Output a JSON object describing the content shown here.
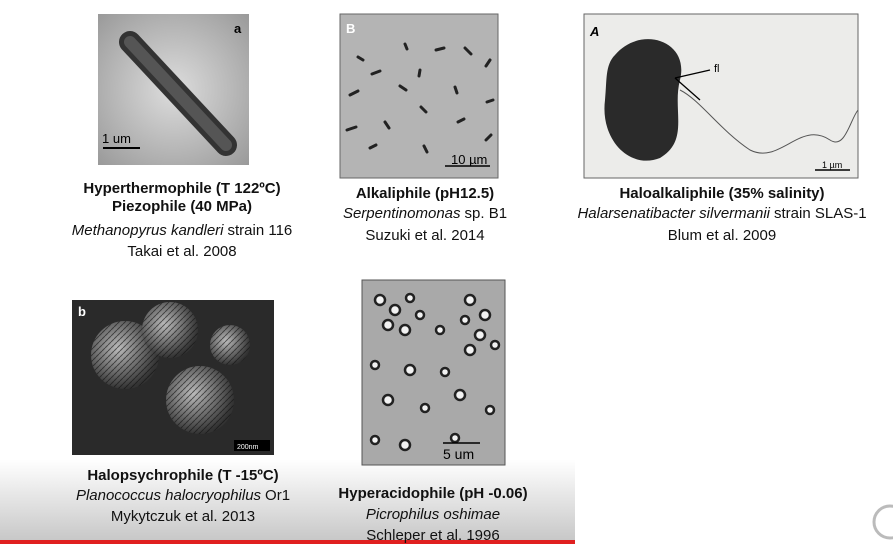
{
  "panels": [
    {
      "label": "a",
      "scale": "1 um",
      "lines": [
        "Hyperthermophile (T 122ºC)",
        "Piezophile (40 MPa)"
      ],
      "species": "Methanopyrus kandleri",
      "strain": "strain 116",
      "reference": "Takai et al. 2008"
    },
    {
      "label": "B",
      "scale": "10 µm",
      "lines": [
        "Alkaliphile (pH12.5)"
      ],
      "species": "Serpentinomonas",
      "strain": "sp. B1",
      "reference": "Suzuki et al. 2014"
    },
    {
      "label": "A",
      "scale": "1 µm",
      "annotation": "fl",
      "lines": [
        "Haloalkaliphile (35% salinity)"
      ],
      "species": "Halarsenatibacter silvermanii",
      "strain": "strain SLAS-1",
      "reference": "Blum et al. 2009"
    },
    {
      "label": "b",
      "scale": "200nm",
      "lines": [
        "Halopsychrophile (T -15ºC)"
      ],
      "species": "Planococcus halocryophilus",
      "strain": "Or1",
      "reference": "Mykytczuk et al. 2013"
    },
    {
      "scale": "5 um",
      "lines": [
        "Hyperacidophile (pH -0.06)"
      ],
      "species": "Picrophilus oshimae",
      "reference": "Schleper et al. 1996"
    }
  ]
}
